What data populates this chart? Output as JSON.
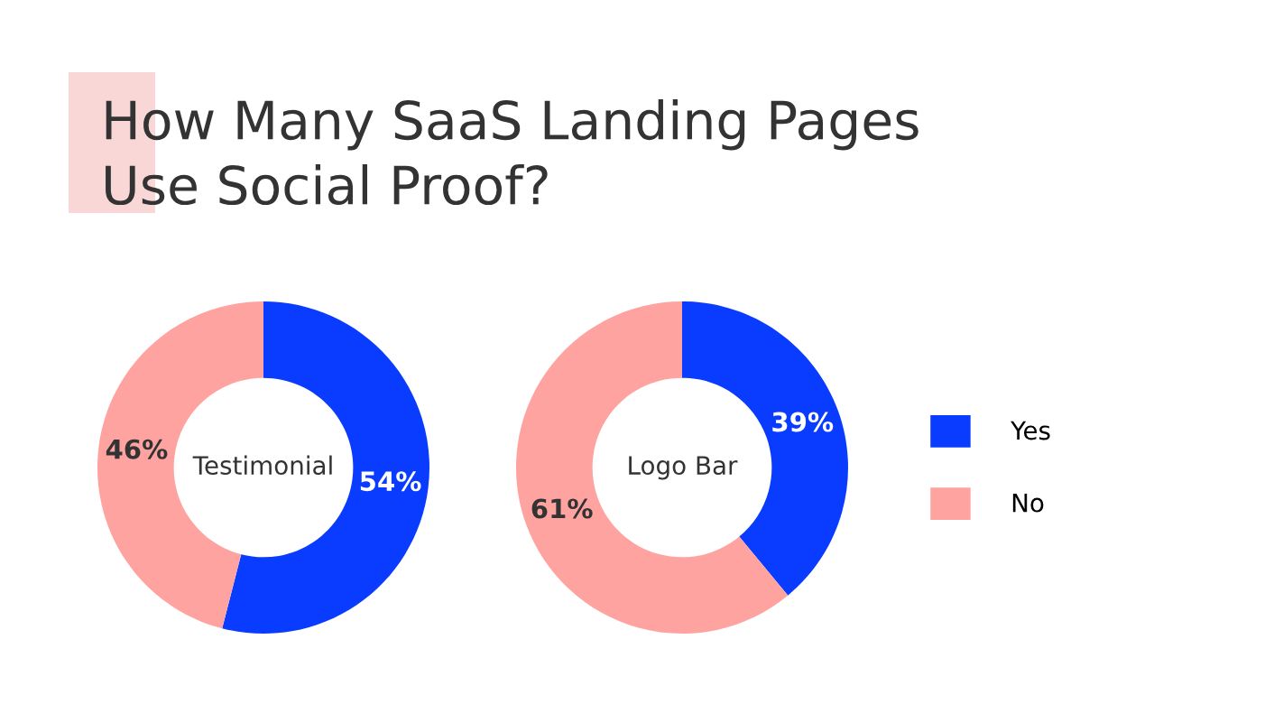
{
  "chart_data": [
    {
      "type": "donut",
      "title": "How Many SaaS Landing Pages\nUse Social Proof?",
      "categories": [
        "Yes",
        "No"
      ],
      "values": [
        54,
        46
      ],
      "value_labels": [
        "54%",
        "46%"
      ],
      "colors": [
        "#0a3cff",
        "#ffa3a0"
      ],
      "annotations": [
        "Testimonial"
      ],
      "legend": "right"
    },
    {
      "type": "donut",
      "categories": [
        null,
        null
      ],
      "values": [
        39,
        61
      ],
      "value_labels": [
        "39%",
        "61%"
      ],
      "colors": [
        "#0a3cff",
        "#ffa3a0"
      ],
      "annotations": [
        "Logo Bar"
      ]
    }
  ]
}
